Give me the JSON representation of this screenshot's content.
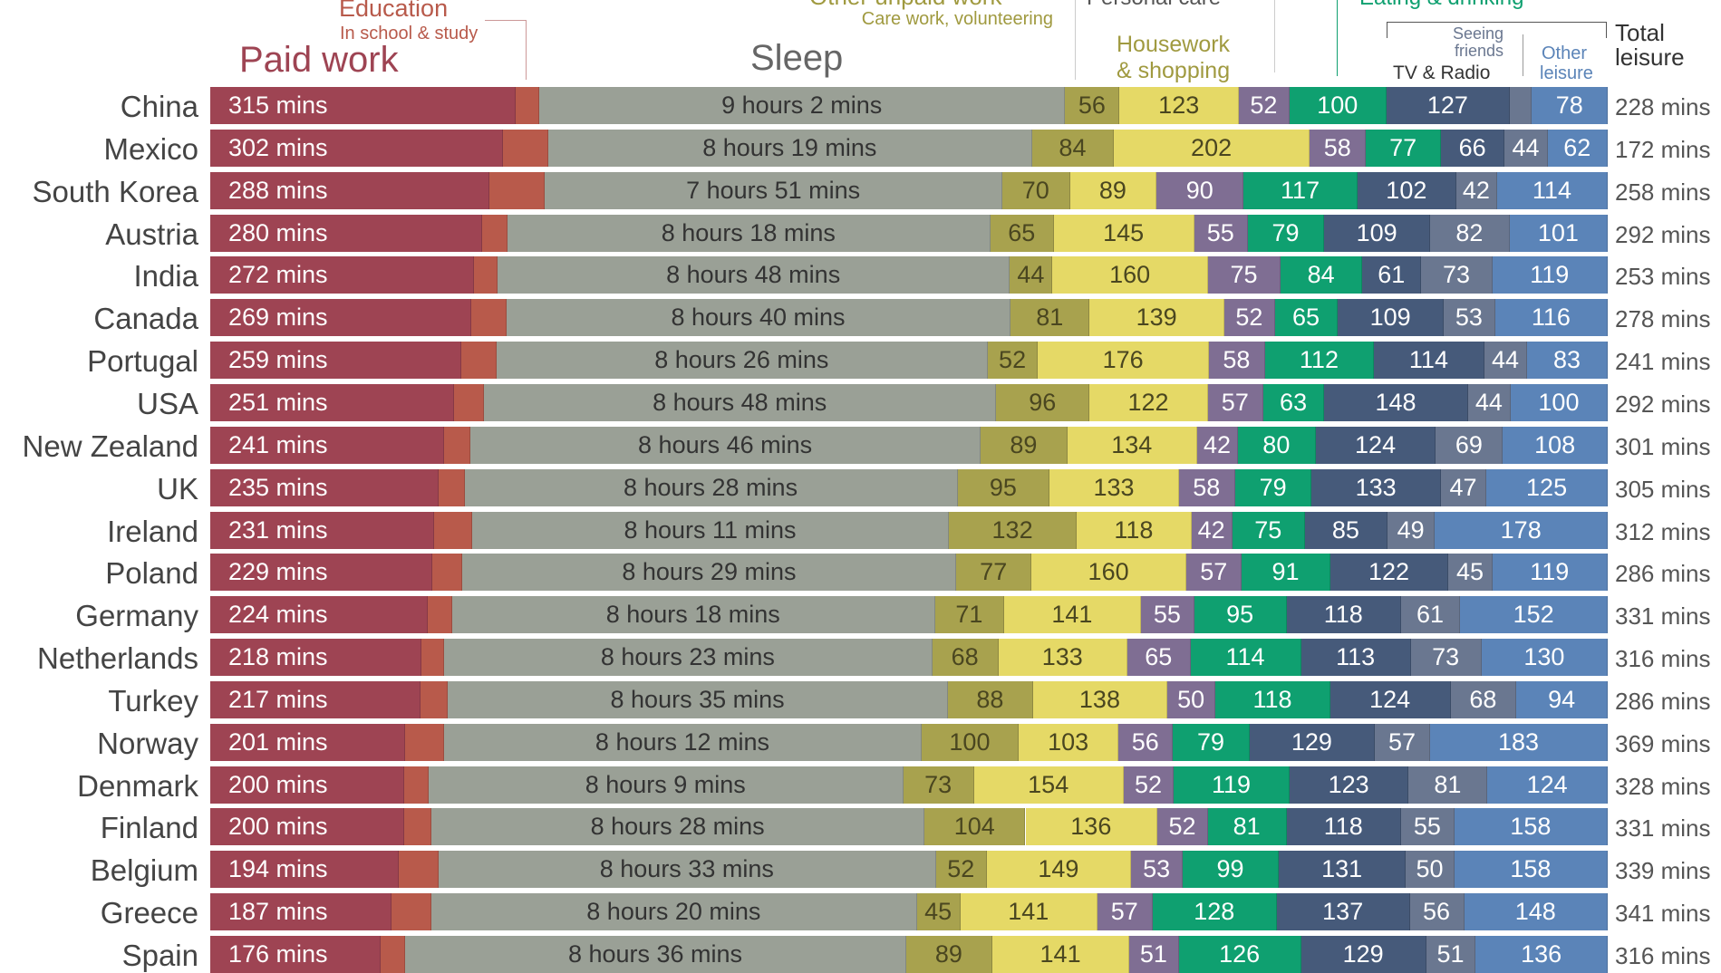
{
  "chart_data": {
    "type": "bar",
    "orientation": "horizontal",
    "stacked": true,
    "unit": "minutes per day",
    "categories": [
      "China",
      "Mexico",
      "South Korea",
      "Austria",
      "India",
      "Canada",
      "Portugal",
      "USA",
      "New Zealand",
      "UK",
      "Ireland",
      "Poland",
      "Germany",
      "Netherlands",
      "Turkey",
      "Norway",
      "Denmark",
      "Finland",
      "Belgium",
      "Greece",
      "Spain"
    ],
    "series": [
      {
        "key": "paid",
        "name": "Paid work",
        "color": "#9e4453",
        "text": "#ffffff",
        "values": [
          315,
          302,
          288,
          280,
          272,
          269,
          259,
          251,
          241,
          235,
          231,
          229,
          224,
          218,
          217,
          201,
          200,
          200,
          194,
          187,
          176
        ]
      },
      {
        "key": "edu",
        "name": "Education",
        "color": "#b85a4b",
        "text": "#ffffff",
        "values": [
          24,
          46,
          57,
          26,
          24,
          36,
          36,
          31,
          27,
          27,
          39,
          31,
          25,
          23,
          28,
          40,
          25,
          28,
          41,
          41,
          25
        ]
      },
      {
        "key": "sleep",
        "name": "Sleep",
        "color": "#9aa096",
        "text": "#333333",
        "values": [
          542,
          499,
          471,
          498,
          528,
          520,
          506,
          528,
          526,
          508,
          491,
          509,
          498,
          503,
          515,
          492,
          489,
          508,
          513,
          500,
          516
        ]
      },
      {
        "key": "unpaid",
        "name": "Other unpaid work",
        "color": "#a8a24e",
        "text": "#4a4620",
        "values": [
          56,
          84,
          70,
          65,
          44,
          81,
          52,
          96,
          89,
          95,
          132,
          77,
          71,
          68,
          88,
          100,
          73,
          104,
          52,
          45,
          89
        ]
      },
      {
        "key": "house",
        "name": "Housework & shopping",
        "color": "#e5d966",
        "text": "#4a4620",
        "values": [
          123,
          202,
          89,
          145,
          160,
          139,
          176,
          122,
          134,
          133,
          118,
          160,
          141,
          133,
          138,
          103,
          154,
          136,
          149,
          141,
          141
        ]
      },
      {
        "key": "personal",
        "name": "Personal care",
        "color": "#7f6e93",
        "text": "#ffffff",
        "values": [
          52,
          58,
          90,
          55,
          75,
          52,
          58,
          57,
          42,
          58,
          42,
          57,
          55,
          65,
          50,
          56,
          52,
          52,
          53,
          57,
          51
        ]
      },
      {
        "key": "eating",
        "name": "Eating & drinking",
        "color": "#0fa070",
        "text": "#ffffff",
        "values": [
          100,
          77,
          117,
          79,
          84,
          65,
          112,
          63,
          80,
          79,
          75,
          91,
          95,
          114,
          118,
          79,
          119,
          81,
          99,
          128,
          126
        ]
      },
      {
        "key": "tv",
        "name": "TV & Radio",
        "color": "#465a7a",
        "text": "#ffffff",
        "values": [
          127,
          66,
          102,
          109,
          61,
          109,
          114,
          148,
          124,
          133,
          85,
          122,
          118,
          113,
          124,
          129,
          123,
          118,
          131,
          137,
          129
        ]
      },
      {
        "key": "friends",
        "name": "Seeing friends",
        "color": "#6a7790",
        "text": "#ffffff",
        "values": [
          23,
          44,
          42,
          82,
          73,
          53,
          44,
          44,
          69,
          47,
          49,
          45,
          61,
          73,
          68,
          57,
          81,
          55,
          50,
          56,
          51
        ]
      },
      {
        "key": "other",
        "name": "Other leisure",
        "color": "#5b84b8",
        "text": "#ffffff",
        "values": [
          78,
          62,
          114,
          101,
          119,
          116,
          83,
          100,
          108,
          125,
          178,
          119,
          152,
          130,
          94,
          183,
          124,
          158,
          158,
          148,
          136
        ]
      }
    ],
    "paid_labels": [
      "315 mins",
      "302 mins",
      "288 mins",
      "280 mins",
      "272 mins",
      "269 mins",
      "259 mins",
      "251 mins",
      "241 mins",
      "235 mins",
      "231 mins",
      "229 mins",
      "224 mins",
      "218 mins",
      "217 mins",
      "201 mins",
      "200 mins",
      "200 mins",
      "194 mins",
      "187 mins",
      "176 mins"
    ],
    "sleep_labels": [
      "9 hours 2 mins",
      "8 hours 19 mins",
      "7 hours 51 mins",
      "8 hours 18 mins",
      "8 hours 48 mins",
      "8 hours 40 mins",
      "8 hours 26 mins",
      "8 hours 48 mins",
      "8 hours 46 mins",
      "8 hours 28 mins",
      "8 hours 11 mins",
      "8 hours 29 mins",
      "8 hours 18 mins",
      "8 hours 23 mins",
      "8 hours 35 mins",
      "8 hours 12 mins",
      "8 hours 9 mins",
      "8 hours 28 mins",
      "8 hours 33 mins",
      "8 hours 20 mins",
      "8 hours 36 mins"
    ],
    "total_leisure_labels": [
      "228 mins",
      "172 mins",
      "258 mins",
      "292 mins",
      "253 mins",
      "278 mins",
      "241 mins",
      "292 mins",
      "301 mins",
      "305 mins",
      "312 mins",
      "286 mins",
      "331 mins",
      "316 mins",
      "286 mins",
      "369 mins",
      "328 mins",
      "331 mins",
      "339 mins",
      "341 mins",
      "316 mins"
    ],
    "unlabeled_series": [
      "edu"
    ],
    "xlim": [
      0,
      1440
    ]
  },
  "headers": {
    "education": "Education",
    "education_sub": "In school & study",
    "paid_work": "Paid work",
    "sleep": "Sleep",
    "other_unpaid": "Other unpaid work",
    "other_unpaid_sub": "Care work, volunteering",
    "personal_care": "Personal care",
    "housework_1": "Housework",
    "housework_2": "& shopping",
    "eating": "Eating & drinking",
    "seeing_1": "Seeing",
    "seeing_2": "friends",
    "tv": "TV & Radio",
    "other_leisure_1": "Other",
    "other_leisure_2": "leisure",
    "total_1": "Total",
    "total_2": "leisure"
  }
}
